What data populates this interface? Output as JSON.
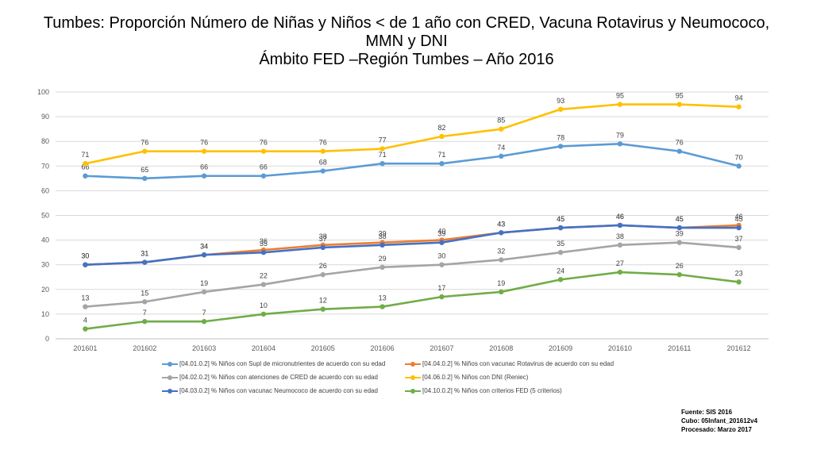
{
  "title": {
    "line1": "Tumbes: Proporción Número de Niñas y Niños < de 1 año con CRED, Vacuna Rotavirus y Neumococo,",
    "line2": "MMN y DNI",
    "line3": "Ámbito FED –Región Tumbes – Año 2016"
  },
  "chart_data": {
    "type": "line",
    "title": "Tumbes: Proporción Número de Niñas y Niños < de 1 año con CRED, Vacuna Rotavirus y Neumococo, MMN y DNI Ámbito FED –Región Tumbes – Año 2016",
    "xlabel": "",
    "ylabel": "",
    "ylim": [
      0,
      100
    ],
    "yticks": [
      0,
      10,
      20,
      30,
      40,
      50,
      60,
      70,
      80,
      90,
      100
    ],
    "grid": true,
    "legend_position": "bottom",
    "categories": [
      "201601",
      "201602",
      "201603",
      "201604",
      "201605",
      "201606",
      "201607",
      "201608",
      "201609",
      "201610",
      "201611",
      "201612"
    ],
    "series": [
      {
        "name": "[04.01.0.2] % Niños con Supl de micronutrientes de acuerdo con su edad",
        "color": "#5B9BD5",
        "values": [
          66,
          65,
          66,
          66,
          68,
          71,
          71,
          74,
          78,
          79,
          76,
          70
        ]
      },
      {
        "name": "[04.04.0.2] % Niños con vacunac Rotavirus de acuerdo con su edad",
        "color": "#ED7D31",
        "values": [
          30,
          31,
          34,
          36,
          38,
          39,
          40,
          43,
          45,
          46,
          45,
          46
        ]
      },
      {
        "name": "[04.02.0.2] % Niños  con atenciones de CRED de acuerdo con su edad",
        "color": "#A5A5A5",
        "values": [
          13,
          15,
          19,
          22,
          26,
          29,
          30,
          32,
          35,
          38,
          39,
          37
        ]
      },
      {
        "name": "[04.06.0.2] % Niños con DNI (Reniec)",
        "color": "#FFC000",
        "values": [
          71,
          76,
          76,
          76,
          76,
          77,
          82,
          85,
          93,
          95,
          95,
          94
        ]
      },
      {
        "name": "[04.03.0.2] % Niños con vacunac Neumococo de acuerdo con su edad",
        "color": "#4472C4",
        "values": [
          30,
          31,
          34,
          35,
          37,
          38,
          39,
          43,
          45,
          46,
          45,
          45
        ]
      },
      {
        "name": "[04.10.0.2] % Niños con criterios FED (5 criterios)",
        "color": "#70AD47",
        "values": [
          4,
          7,
          7,
          10,
          12,
          13,
          17,
          19,
          24,
          27,
          26,
          23
        ]
      }
    ]
  },
  "source": {
    "line1": "Fuente: SIS 2016",
    "line2": "Cubo: 05Infant_201612v4",
    "line3": "Procesado: Marzo 2017"
  }
}
